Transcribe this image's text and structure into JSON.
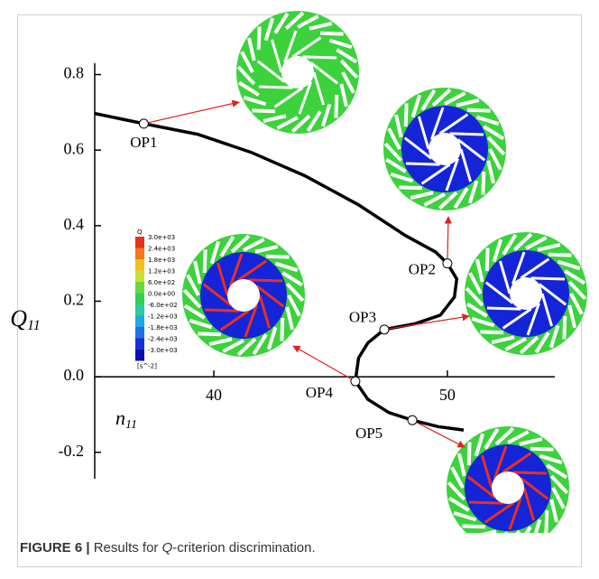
{
  "chart_data": {
    "type": "line",
    "xlabel": {
      "symbol": "n",
      "subscript": "11"
    },
    "ylabel": {
      "symbol": "Q",
      "subscript": "11"
    },
    "xlim": [
      34.9,
      54.6
    ],
    "ylim": [
      -0.27,
      0.83
    ],
    "xticks": [
      40,
      50
    ],
    "yticks": [
      {
        "value": -0.2,
        "label": "-0.2"
      },
      {
        "value": 0,
        "label": "0.0"
      },
      0.2,
      0.4,
      0.6,
      0.8
    ],
    "color": "#000000",
    "x": [
      34.9,
      37.0,
      39.3,
      41.6,
      43.9,
      46.2,
      48.2,
      49.5,
      50.0,
      50.4,
      50.3,
      49.7,
      48.6,
      47.3,
      46.6,
      46.2,
      46.06,
      46.6,
      47.5,
      48.5,
      49.6,
      50.7
    ],
    "values": [
      0.697,
      0.67,
      0.642,
      0.594,
      0.532,
      0.455,
      0.374,
      0.33,
      0.3,
      0.259,
      0.211,
      0.163,
      0.14,
      0.125,
      0.09,
      0.05,
      -0.012,
      -0.06,
      -0.095,
      -0.115,
      -0.132,
      -0.141
    ],
    "points": [
      {
        "label": "OP1",
        "x": 37.0,
        "y": 0.67
      },
      {
        "label": "OP2",
        "x": 50.0,
        "y": 0.3
      },
      {
        "label": "OP3",
        "x": 47.3,
        "y": 0.125
      },
      {
        "label": "OP4",
        "x": 46.06,
        "y": -0.012
      },
      {
        "label": "OP5",
        "x": 48.5,
        "y": -0.115
      }
    ],
    "colorbar": {
      "title": "Q",
      "labels": [
        "3.0e+03",
        "2.4e+03",
        "1.8e+03",
        "1.2e+03",
        "6.0e+02",
        "0.0e+00",
        "-6.0e+02",
        "-1.2e+03",
        "-1.8e+03",
        "-2.4e+03",
        "-3.0e+03"
      ],
      "unit": "[s^-2]",
      "colors": [
        "#e8301c",
        "#f07a1a",
        "#f4c020",
        "#c8e030",
        "#6ad83a",
        "#30d050",
        "#30c8a0",
        "#20a8e0",
        "#2070e8",
        "#1830d8",
        "#0a10b0"
      ]
    }
  },
  "figure_caption": {
    "label": "FIGURE 6 |",
    "text_start": "Results for",
    "symbol": "Q",
    "text_end": "-criterion discrimination."
  }
}
